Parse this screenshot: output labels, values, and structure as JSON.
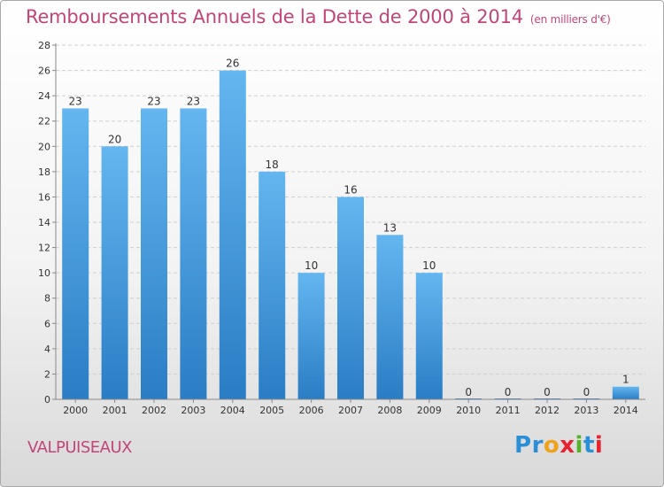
{
  "title": "Remboursements Annuels de la Dette de 2000 à 2014",
  "subtitle": "(en milliers d'€)",
  "commune": "VALPUISEAUX",
  "logo": {
    "text": "Proxiti",
    "letters": [
      {
        "ch": "P",
        "color": "#2a8fd6"
      },
      {
        "ch": "r",
        "color": "#2a8fd6"
      },
      {
        "ch": "o",
        "color": "#f0a21a"
      },
      {
        "ch": "x",
        "color": "#e8222e"
      },
      {
        "ch": "i",
        "color": "#58b02e"
      },
      {
        "ch": "t",
        "color": "#2a8fd6"
      },
      {
        "ch": "i",
        "color": "#e8222e"
      }
    ]
  },
  "colors": {
    "title": "#c2457a",
    "bar_light": "#62b4ee",
    "bar_dark": "#2a7dc4"
  },
  "chart_data": {
    "type": "bar",
    "title": "Remboursements Annuels de la Dette de 2000 à 2014",
    "subtitle": "(en milliers d'€)",
    "categories": [
      "2000",
      "2001",
      "2002",
      "2003",
      "2004",
      "2005",
      "2006",
      "2007",
      "2008",
      "2009",
      "2010",
      "2011",
      "2012",
      "2013",
      "2014"
    ],
    "values": [
      23,
      20,
      23,
      23,
      26,
      18,
      10,
      16,
      13,
      10,
      0,
      0,
      0,
      0,
      1
    ],
    "ylim": [
      0,
      28
    ],
    "yticks": [
      0,
      2,
      4,
      6,
      8,
      10,
      12,
      14,
      16,
      18,
      20,
      22,
      24,
      26,
      28
    ],
    "grid": "horizontal dashed",
    "xlabel": "",
    "ylabel": ""
  }
}
